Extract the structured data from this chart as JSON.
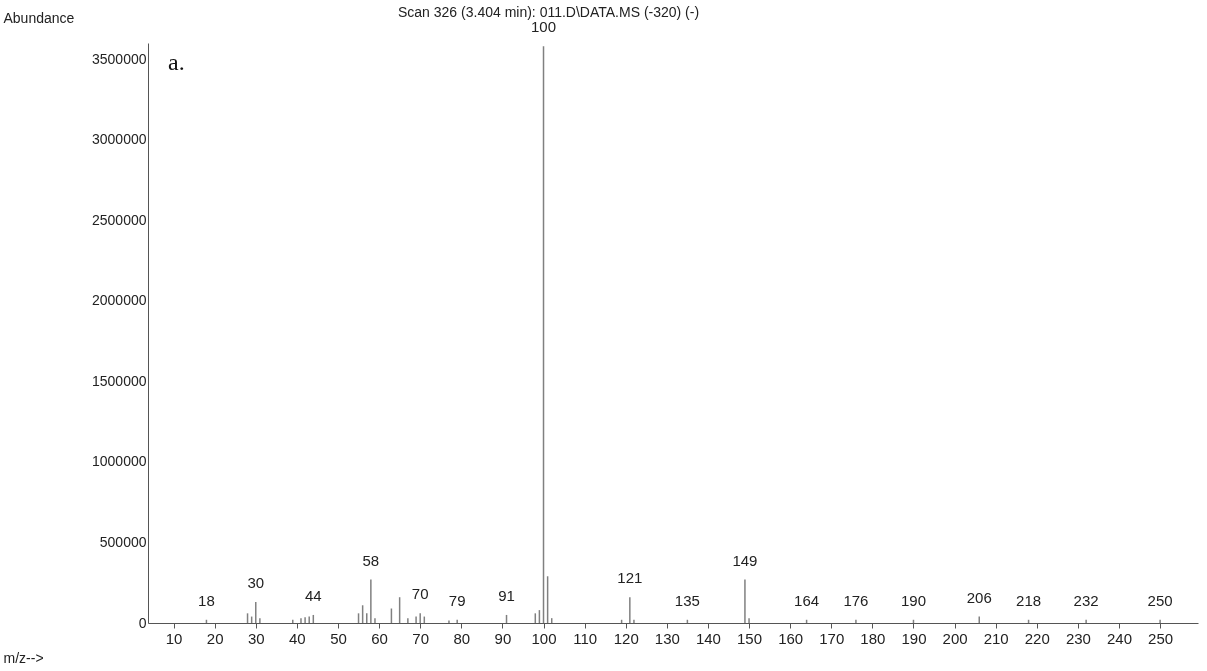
{
  "chart_data": {
    "type": "bar",
    "title": "Scan 326 (3.404 min): 011.D\\DATA.MS (-320) (-)",
    "xlabel": "m/z-->",
    "ylabel": "Abundance",
    "color": "#808080",
    "x": [
      18,
      28,
      29,
      30,
      31,
      39,
      41,
      42,
      43,
      44,
      55,
      56,
      57,
      58,
      59,
      63,
      65,
      67,
      69,
      70,
      71,
      77,
      79,
      91,
      98,
      99,
      100,
      101,
      102,
      119,
      121,
      122,
      135,
      149,
      150,
      164,
      176,
      190,
      206,
      218,
      232,
      250
    ],
    "values": [
      20000,
      60000,
      40000,
      130000,
      30000,
      20000,
      30000,
      35000,
      40000,
      50000,
      60000,
      110000,
      60000,
      270000,
      30000,
      90000,
      160000,
      30000,
      40000,
      60000,
      40000,
      15000,
      20000,
      50000,
      60000,
      80000,
      3580000,
      290000,
      30000,
      20000,
      160000,
      20000,
      20000,
      270000,
      30000,
      20000,
      20000,
      20000,
      40000,
      20000,
      20000,
      20000
    ],
    "xlim": [
      5,
      258
    ],
    "ylim": [
      0,
      3600000
    ],
    "xticks": [
      10,
      20,
      30,
      40,
      50,
      60,
      70,
      80,
      90,
      100,
      110,
      120,
      130,
      140,
      150,
      160,
      170,
      180,
      190,
      200,
      210,
      220,
      230,
      240,
      250
    ],
    "yticks": [
      0,
      500000,
      1000000,
      1500000,
      2000000,
      2500000,
      3000000,
      3500000
    ],
    "annotations": [
      "a.",
      {
        "text": "18",
        "x": 18,
        "y": 20000
      },
      {
        "text": "30",
        "x": 30,
        "y": 130000
      },
      {
        "text": "44",
        "x": 44,
        "y": 50000
      },
      {
        "text": "58",
        "x": 58,
        "y": 270000
      },
      {
        "text": "70",
        "x": 70,
        "y": 60000
      },
      {
        "text": "79",
        "x": 79,
        "y": 20000
      },
      {
        "text": "91",
        "x": 91,
        "y": 50000
      },
      {
        "text": "100",
        "x": 100,
        "y": 3580000
      },
      {
        "text": "121",
        "x": 121,
        "y": 160000
      },
      {
        "text": "135",
        "x": 135,
        "y": 20000
      },
      {
        "text": "149",
        "x": 149,
        "y": 270000
      },
      {
        "text": "164",
        "x": 164,
        "y": 20000
      },
      {
        "text": "176",
        "x": 176,
        "y": 20000
      },
      {
        "text": "190",
        "x": 190,
        "y": 20000
      },
      {
        "text": "206",
        "x": 206,
        "y": 40000
      },
      {
        "text": "218",
        "x": 218,
        "y": 20000
      },
      {
        "text": "232",
        "x": 232,
        "y": 20000
      },
      {
        "text": "250",
        "x": 250,
        "y": 20000
      }
    ]
  }
}
